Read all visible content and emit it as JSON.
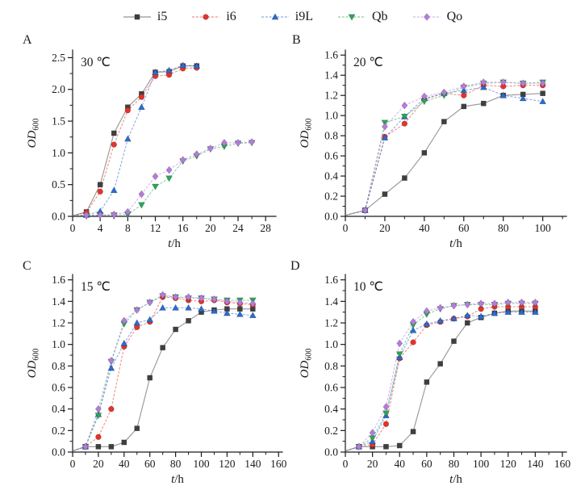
{
  "figure": {
    "background": "#ffffff",
    "legend": {
      "items": [
        {
          "label": "i5",
          "color": "#3f3f3f",
          "marker": "square",
          "line_style": "solid"
        },
        {
          "label": "i6",
          "color": "#e5332a",
          "marker": "circle",
          "line_style": "dashed"
        },
        {
          "label": "i9L",
          "color": "#2b6bd0",
          "marker": "triangle-up",
          "line_style": "dashed"
        },
        {
          "label": "Qb",
          "color": "#2aa557",
          "marker": "triangle-down",
          "line_style": "dashed"
        },
        {
          "label": "Qo",
          "color": "#b57bdc",
          "marker": "diamond",
          "line_style": "dashed"
        }
      ]
    }
  },
  "chart_data": [
    {
      "type": "line",
      "panel": "A",
      "temperature_label": "30 ℃",
      "xlabel": "t/h",
      "xlabel_parts": {
        "italic": "t",
        "rest": "/h"
      },
      "ylabel": "OD600",
      "ylabel_parts": {
        "main": "OD",
        "sub": "600"
      },
      "xlim": [
        0,
        29.5
      ],
      "ylim": [
        0,
        2.62
      ],
      "x_ticks": [
        0,
        4,
        8,
        12,
        16,
        20,
        24,
        28
      ],
      "x_minor_step": 2,
      "y_ticks": [
        0.0,
        0.5,
        1.0,
        1.5,
        2.0,
        2.5
      ],
      "y_tick_labels": [
        "0.0",
        "0.5",
        "1.0",
        "1.5",
        "2.0",
        "2.5"
      ],
      "y_minor_step": 0.25,
      "grid": false,
      "series": [
        {
          "name": "i5",
          "x": [
            0,
            2,
            4,
            6,
            8,
            10,
            12,
            14,
            16,
            18
          ],
          "y": [
            0.01,
            0.07,
            0.5,
            1.31,
            1.72,
            1.93,
            2.27,
            2.28,
            2.37,
            2.37
          ]
        },
        {
          "name": "i6",
          "x": [
            0,
            2,
            4,
            6,
            8,
            10,
            12,
            14,
            16,
            18
          ],
          "y": [
            0.01,
            0.06,
            0.39,
            1.13,
            1.67,
            1.88,
            2.21,
            2.23,
            2.33,
            2.34
          ]
        },
        {
          "name": "i9L",
          "x": [
            0,
            2,
            4,
            6,
            8,
            10,
            12,
            14,
            16,
            18
          ],
          "y": [
            0.01,
            0.02,
            0.08,
            0.41,
            1.22,
            1.72,
            2.27,
            2.3,
            2.38,
            2.37
          ]
        },
        {
          "name": "Qb",
          "x": [
            0,
            2,
            4,
            6,
            8,
            10,
            12,
            14,
            16,
            18,
            20,
            22,
            24,
            26
          ],
          "y": [
            0.01,
            0.01,
            0.02,
            0.02,
            0.03,
            0.18,
            0.47,
            0.6,
            0.87,
            0.95,
            1.06,
            1.1,
            1.15,
            1.16
          ]
        },
        {
          "name": "Qo",
          "x": [
            0,
            2,
            4,
            6,
            8,
            10,
            12,
            14,
            16,
            18,
            20,
            22,
            24,
            26
          ],
          "y": [
            0.01,
            0.02,
            0.02,
            0.03,
            0.07,
            0.35,
            0.63,
            0.73,
            0.89,
            0.98,
            1.07,
            1.16,
            1.16,
            1.17
          ]
        }
      ]
    },
    {
      "type": "line",
      "panel": "B",
      "temperature_label": "20 ℃",
      "xlabel": "t/h",
      "xlabel_parts": {
        "italic": "t",
        "rest": "/h"
      },
      "ylabel": "OD600",
      "ylabel_parts": {
        "main": "OD",
        "sub": "600"
      },
      "xlim": [
        0,
        112
      ],
      "ylim": [
        0,
        1.65
      ],
      "x_ticks": [
        0,
        20,
        40,
        60,
        80,
        100
      ],
      "x_minor_step": 10,
      "y_ticks": [
        0.0,
        0.2,
        0.4,
        0.6,
        0.8,
        1.0,
        1.2,
        1.4,
        1.6
      ],
      "y_tick_labels": [
        "0.0",
        "0.2",
        "0.4",
        "0.6",
        "0.8",
        "1.0",
        "1.2",
        "1.4",
        "1.6"
      ],
      "y_minor_step": 0.1,
      "grid": false,
      "series": [
        {
          "name": "i5",
          "x": [
            0,
            10,
            20,
            30,
            40,
            50,
            60,
            70,
            80,
            90,
            100
          ],
          "y": [
            0.01,
            0.06,
            0.22,
            0.38,
            0.63,
            0.94,
            1.09,
            1.12,
            1.2,
            1.21,
            1.22
          ]
        },
        {
          "name": "i6",
          "x": [
            0,
            10,
            20,
            30,
            40,
            50,
            60,
            70,
            80,
            90,
            100
          ],
          "y": [
            0.01,
            0.06,
            0.79,
            0.92,
            1.16,
            1.22,
            1.2,
            1.3,
            1.29,
            1.3,
            1.3
          ]
        },
        {
          "name": "i9L",
          "x": [
            0,
            10,
            20,
            30,
            40,
            50,
            60,
            70,
            80,
            90,
            100
          ],
          "y": [
            0.01,
            0.06,
            0.78,
            0.99,
            1.17,
            1.22,
            1.25,
            1.28,
            1.2,
            1.17,
            1.14
          ]
        },
        {
          "name": "Qb",
          "x": [
            0,
            10,
            20,
            30,
            40,
            50,
            60,
            70,
            80,
            90,
            100
          ],
          "y": [
            0.01,
            0.06,
            0.93,
            0.99,
            1.14,
            1.2,
            1.28,
            1.32,
            1.33,
            1.32,
            1.33
          ]
        },
        {
          "name": "Qo",
          "x": [
            0,
            10,
            20,
            30,
            40,
            50,
            60,
            70,
            80,
            90,
            100
          ],
          "y": [
            0.01,
            0.06,
            0.89,
            1.1,
            1.19,
            1.23,
            1.29,
            1.33,
            1.33,
            1.32,
            1.32
          ]
        }
      ]
    },
    {
      "type": "line",
      "panel": "C",
      "temperature_label": "15 ℃",
      "xlabel": "t/h",
      "xlabel_parts": {
        "italic": "t",
        "rest": "/h"
      },
      "ylabel": "OD600",
      "ylabel_parts": {
        "main": "OD",
        "sub": "600"
      },
      "xlim": [
        0,
        163
      ],
      "ylim": [
        0,
        1.65
      ],
      "x_ticks": [
        0,
        20,
        40,
        60,
        80,
        100,
        120,
        140,
        160
      ],
      "x_minor_step": 10,
      "y_ticks": [
        0.0,
        0.2,
        0.4,
        0.6,
        0.8,
        1.0,
        1.2,
        1.4,
        1.6
      ],
      "y_tick_labels": [
        "0.0",
        "0.2",
        "0.4",
        "0.6",
        "0.8",
        "1.0",
        "1.2",
        "1.4",
        "1.6"
      ],
      "y_minor_step": 0.1,
      "grid": false,
      "series": [
        {
          "name": "i5",
          "x": [
            0,
            10,
            20,
            30,
            40,
            50,
            60,
            70,
            80,
            90,
            100,
            110,
            120,
            130,
            140
          ],
          "y": [
            0.01,
            0.05,
            0.05,
            0.05,
            0.09,
            0.22,
            0.69,
            0.97,
            1.14,
            1.22,
            1.3,
            1.32,
            1.33,
            1.33,
            1.33
          ]
        },
        {
          "name": "i6",
          "x": [
            0,
            10,
            20,
            30,
            40,
            50,
            60,
            70,
            80,
            90,
            100,
            110,
            120,
            130,
            140
          ],
          "y": [
            0.01,
            0.05,
            0.14,
            0.4,
            0.98,
            1.16,
            1.21,
            1.44,
            1.43,
            1.41,
            1.4,
            1.41,
            1.39,
            1.38,
            1.37
          ]
        },
        {
          "name": "i9L",
          "x": [
            0,
            10,
            20,
            30,
            40,
            50,
            60,
            70,
            80,
            90,
            100,
            110,
            120,
            130,
            140
          ],
          "y": [
            0.01,
            0.05,
            0.35,
            0.78,
            1.01,
            1.2,
            1.23,
            1.34,
            1.34,
            1.34,
            1.33,
            1.31,
            1.29,
            1.28,
            1.27
          ]
        },
        {
          "name": "Qb",
          "x": [
            0,
            10,
            20,
            30,
            40,
            50,
            60,
            70,
            80,
            90,
            100,
            110,
            120,
            130,
            140
          ],
          "y": [
            0.01,
            0.05,
            0.34,
            0.84,
            1.19,
            1.32,
            1.39,
            1.45,
            1.44,
            1.43,
            1.43,
            1.42,
            1.41,
            1.41,
            1.41
          ]
        },
        {
          "name": "Qo",
          "x": [
            0,
            10,
            20,
            30,
            40,
            50,
            60,
            70,
            80,
            90,
            100,
            110,
            120,
            130,
            140
          ],
          "y": [
            0.01,
            0.05,
            0.4,
            0.85,
            1.22,
            1.32,
            1.39,
            1.46,
            1.44,
            1.44,
            1.43,
            1.42,
            1.4,
            1.39,
            1.38
          ]
        }
      ]
    },
    {
      "type": "line",
      "panel": "D",
      "temperature_label": "10 ℃",
      "xlabel": "t/h",
      "xlabel_parts": {
        "italic": "t",
        "rest": "/h"
      },
      "ylabel": "OD600",
      "ylabel_parts": {
        "main": "OD",
        "sub": "600"
      },
      "xlim": [
        0,
        163
      ],
      "ylim": [
        0,
        1.65
      ],
      "x_ticks": [
        0,
        20,
        40,
        60,
        80,
        100,
        120,
        140,
        160
      ],
      "x_minor_step": 10,
      "y_ticks": [
        0.0,
        0.2,
        0.4,
        0.6,
        0.8,
        1.0,
        1.2,
        1.4,
        1.6
      ],
      "y_tick_labels": [
        "0.0",
        "0.2",
        "0.4",
        "0.6",
        "0.8",
        "1.0",
        "1.2",
        "1.4",
        "1.6"
      ],
      "y_minor_step": 0.1,
      "grid": false,
      "series": [
        {
          "name": "i5",
          "x": [
            0,
            10,
            20,
            30,
            40,
            50,
            60,
            70,
            80,
            90,
            100,
            110,
            120,
            130,
            140
          ],
          "y": [
            0.01,
            0.05,
            0.05,
            0.05,
            0.06,
            0.19,
            0.65,
            0.82,
            1.03,
            1.2,
            1.25,
            1.29,
            1.31,
            1.31,
            1.31
          ]
        },
        {
          "name": "i6",
          "x": [
            0,
            10,
            20,
            30,
            40,
            50,
            60,
            70,
            80,
            90,
            100,
            110,
            120,
            130,
            140
          ],
          "y": [
            0.01,
            0.05,
            0.07,
            0.26,
            0.87,
            1.02,
            1.18,
            1.21,
            1.24,
            1.26,
            1.33,
            1.35,
            1.35,
            1.35,
            1.35
          ]
        },
        {
          "name": "i9L",
          "x": [
            0,
            10,
            20,
            30,
            40,
            50,
            60,
            70,
            80,
            90,
            100,
            110,
            120,
            130,
            140
          ],
          "y": [
            0.01,
            0.05,
            0.1,
            0.34,
            0.88,
            1.13,
            1.19,
            1.22,
            1.24,
            1.27,
            1.26,
            1.29,
            1.3,
            1.3,
            1.3
          ]
        },
        {
          "name": "Qb",
          "x": [
            0,
            10,
            20,
            30,
            40,
            50,
            60,
            70,
            80,
            90,
            100,
            110,
            120,
            130,
            140
          ],
          "y": [
            0.01,
            0.05,
            0.13,
            0.36,
            0.91,
            1.18,
            1.28,
            1.33,
            1.36,
            1.37,
            1.37,
            1.37,
            1.38,
            1.38,
            1.38
          ]
        },
        {
          "name": "Qo",
          "x": [
            0,
            10,
            20,
            30,
            40,
            50,
            60,
            70,
            80,
            90,
            100,
            110,
            120,
            130,
            140
          ],
          "y": [
            0.01,
            0.05,
            0.18,
            0.42,
            1.01,
            1.21,
            1.31,
            1.34,
            1.36,
            1.37,
            1.38,
            1.38,
            1.39,
            1.39,
            1.39
          ]
        }
      ]
    }
  ]
}
